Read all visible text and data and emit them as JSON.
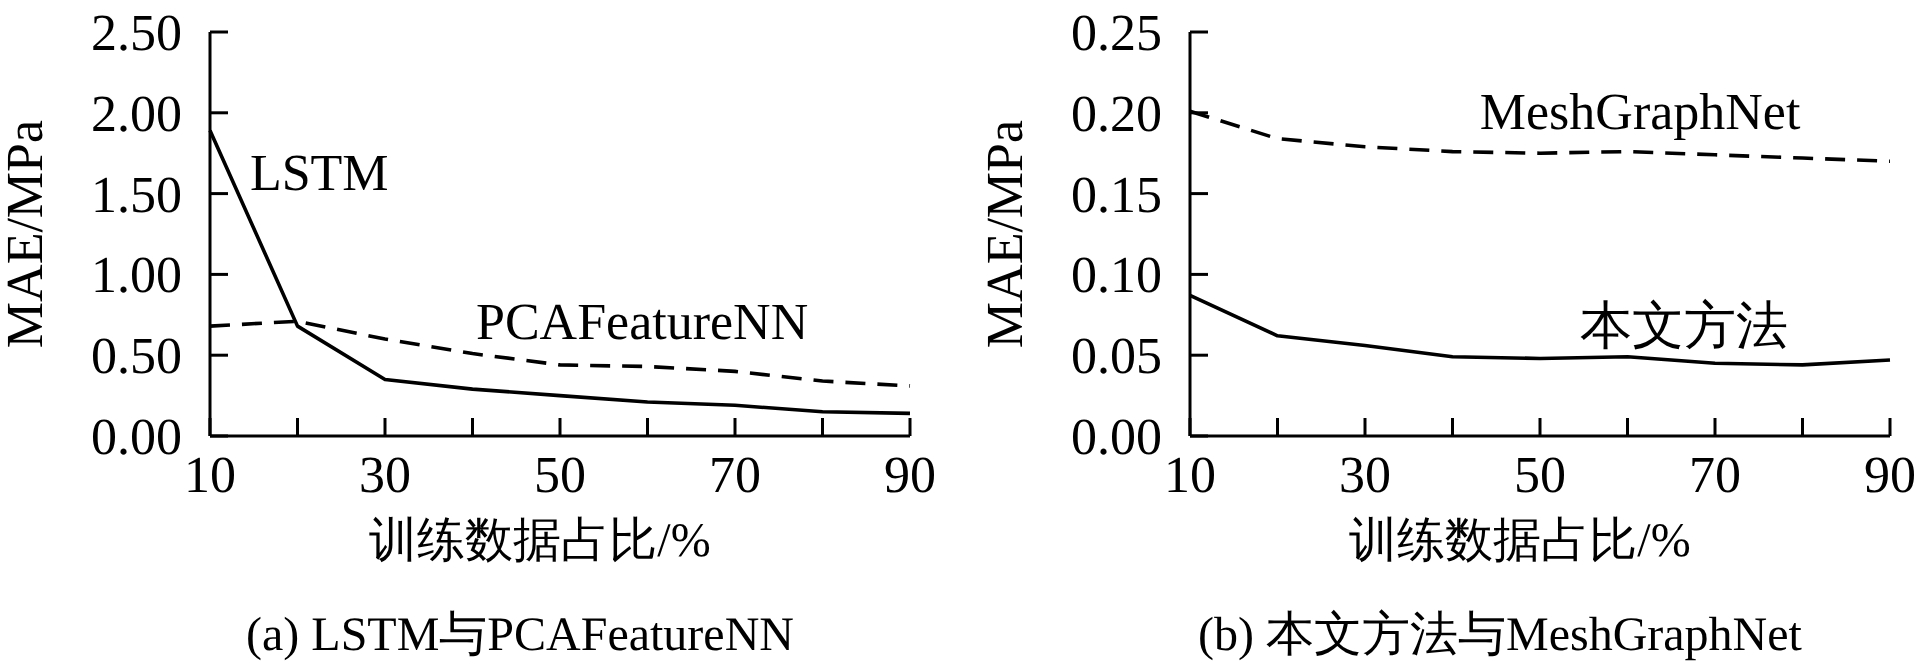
{
  "chart_data": [
    {
      "type": "line",
      "title": "(a) LSTM与PCAFeatureNN",
      "xlabel": "训练数据占比/%",
      "ylabel": "MAE/MPa",
      "x": [
        10,
        20,
        30,
        40,
        50,
        60,
        70,
        80,
        90
      ],
      "series": [
        {
          "name": "LSTM",
          "color": "#000000",
          "line_style": "solid",
          "values": [
            1.89,
            0.68,
            0.35,
            0.29,
            0.25,
            0.21,
            0.19,
            0.15,
            0.14
          ]
        },
        {
          "name": "PCAFeatureNN",
          "color": "#000000",
          "line_style": "dashed",
          "values": [
            0.68,
            0.71,
            0.6,
            0.51,
            0.44,
            0.43,
            0.4,
            0.34,
            0.31
          ]
        }
      ],
      "xlim": [
        10,
        90
      ],
      "ylim": [
        0,
        2.5
      ],
      "xticks": [
        10,
        {
          "value": 20,
          "label": null
        },
        30,
        {
          "value": 40,
          "label": null
        },
        50,
        {
          "value": 60,
          "label": null
        },
        70,
        {
          "value": 80,
          "label": null
        },
        90
      ],
      "yticks": [
        {
          "value": 0,
          "label": "0.00"
        },
        {
          "value": 0.5,
          "label": "0.50"
        },
        {
          "value": 1,
          "label": "1.00"
        },
        {
          "value": 1.5,
          "label": "1.50"
        },
        {
          "value": 2,
          "label": "2.00"
        },
        {
          "value": 2.5,
          "label": "2.50"
        }
      ],
      "grid": false,
      "legend": false,
      "marker": "none"
    },
    {
      "type": "line",
      "title": "(b) 本文方法与MeshGraphNet",
      "xlabel": "训练数据占比/%",
      "ylabel": "MAE/MPa",
      "x": [
        10,
        20,
        30,
        40,
        50,
        60,
        70,
        80,
        90
      ],
      "series": [
        {
          "name": "MeshGraphNet",
          "color": "#000000",
          "line_style": "dashed",
          "values": [
            0.201,
            0.184,
            0.179,
            0.176,
            0.175,
            0.176,
            0.174,
            0.172,
            0.17
          ]
        },
        {
          "name": "本文方法",
          "color": "#000000",
          "line_style": "solid",
          "values": [
            0.087,
            0.062,
            0.056,
            0.049,
            0.048,
            0.049,
            0.045,
            0.044,
            0.047
          ]
        }
      ],
      "xlim": [
        10,
        90
      ],
      "ylim": [
        0,
        0.25
      ],
      "xticks": [
        10,
        {
          "value": 20,
          "label": null
        },
        30,
        {
          "value": 40,
          "label": null
        },
        50,
        {
          "value": 60,
          "label": null
        },
        70,
        {
          "value": 80,
          "label": null
        },
        90
      ],
      "yticks": [
        {
          "value": 0,
          "label": "0.00"
        },
        {
          "value": 0.05,
          "label": "0.05"
        },
        {
          "value": 0.1,
          "label": "0.10"
        },
        {
          "value": 0.15,
          "label": "0.15"
        },
        {
          "value": 0.2,
          "label": "0.20"
        },
        {
          "value": 0.25,
          "label": "0.25"
        }
      ],
      "grid": false,
      "legend": false,
      "marker": "none"
    }
  ]
}
